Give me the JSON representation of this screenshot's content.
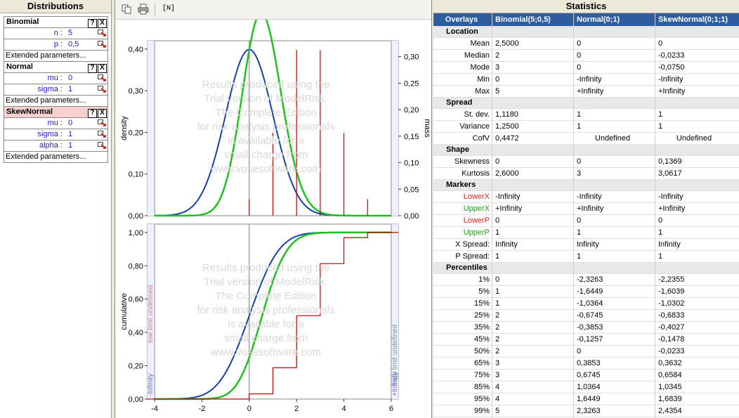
{
  "left": {
    "title": "Distributions",
    "distributions": [
      {
        "name": "Binomial",
        "params": [
          {
            "label": "n :",
            "value": "5"
          },
          {
            "label": "p :",
            "value": "0,5"
          }
        ],
        "extended": "Extended parameters..."
      },
      {
        "name": "Normal",
        "params": [
          {
            "label": "mu :",
            "value": "0"
          },
          {
            "label": "sigma :",
            "value": "1"
          }
        ],
        "extended": "Extended parameters..."
      },
      {
        "name": "SkewNormal",
        "params": [
          {
            "label": "mu :",
            "value": "0"
          },
          {
            "label": "sigma :",
            "value": "1"
          },
          {
            "label": "alpha :",
            "value": "1"
          }
        ],
        "extended": "Extended parameters..."
      }
    ],
    "help_label": "?",
    "close_label": "X"
  },
  "toolbar": {
    "n_label": "[N]"
  },
  "watermark": [
    "Results produced using the",
    "Trial version of ModelRisk.",
    "The Complete Edition",
    "for risk analysis professionals",
    "is available for a",
    "small charge from",
    "www.vosesoftware.com"
  ],
  "chart_data": [
    {
      "type": "line",
      "title": "",
      "ylabel": "density",
      "y2label": "mass",
      "xlim": [
        -4.3,
        6.3
      ],
      "ylim": [
        0,
        0.42
      ],
      "y2lim": [
        0,
        0.33
      ],
      "yticks": [
        "0,40",
        "0,30",
        "0,20",
        "0,10",
        "0,00"
      ],
      "y2ticks": [
        "0,30",
        "0,25",
        "0,20",
        "0,15",
        "0,10",
        "0,05",
        "0,00"
      ],
      "series": [
        {
          "name": "Normal(0;1)",
          "color": "#1a3faa"
        },
        {
          "name": "SkewNormal(0;1;1)",
          "color": "#20c020"
        },
        {
          "name": "Binomial(5;0,5)",
          "color": "#c00000",
          "x": [
            0,
            1,
            2,
            3,
            4,
            5
          ],
          "values": [
            0.03125,
            0.15625,
            0.3125,
            0.3125,
            0.15625,
            0.03125
          ]
        }
      ]
    },
    {
      "type": "line",
      "ylabel": "cumulative",
      "xlim": [
        -4.3,
        6.3
      ],
      "ylim": [
        0,
        1.05
      ],
      "yticks": [
        "1,00",
        "0,80",
        "0,60",
        "0,40",
        "0,20",
        "0,00"
      ],
      "xticks": [
        "-4",
        "-2",
        "0",
        "2",
        "4",
        "6"
      ],
      "low_limit": "low limit undefined",
      "high_limit": "high limit undefined",
      "low_inf": "-Infinity",
      "high_inf": "+Infinity",
      "series": [
        {
          "name": "Normal(0;1)",
          "color": "#1a3faa"
        },
        {
          "name": "SkewNormal(0;1;1)",
          "color": "#20c020"
        },
        {
          "name": "Binomial(5;0,5)",
          "color": "#c00000",
          "x": [
            0,
            1,
            2,
            3,
            4,
            5
          ],
          "values": [
            0.03125,
            0.1875,
            0.5,
            0.8125,
            0.96875,
            1
          ]
        }
      ]
    }
  ],
  "stats": {
    "title": "Statistics",
    "header": [
      "Overlays",
      "Binomial(5;0,5)",
      "Normal(0;1)",
      "SkewNormal(0;1;1)"
    ],
    "sections": [
      {
        "name": "Location",
        "rows": [
          [
            "Mean",
            "2,5000",
            "0",
            "0"
          ],
          [
            "Median",
            "2",
            "0",
            "-0,0233"
          ],
          [
            "Mode",
            "3",
            "0",
            "-0,0750"
          ],
          [
            "Min",
            "0",
            "-Infinity",
            "-Infinity"
          ],
          [
            "Max",
            "5",
            "+Infinity",
            "+Infinity"
          ]
        ]
      },
      {
        "name": "Spread",
        "rows": [
          [
            "St. dev.",
            "1,1180",
            "1",
            "1"
          ],
          [
            "Variance",
            "1,2500",
            "1",
            "1"
          ],
          [
            "CofV",
            "0,4472",
            "Undefined",
            "Undefined"
          ]
        ]
      },
      {
        "name": "Shape",
        "rows": [
          [
            "Skewness",
            "0",
            "0",
            "0,1369"
          ],
          [
            "Kurtosis",
            "2,6000",
            "3",
            "3,0617"
          ]
        ]
      },
      {
        "name": "Markers",
        "rows": [
          [
            "LowerX",
            "-Infinity",
            "-Infinity",
            "-Infinity"
          ],
          [
            "UpperX",
            "+Infinity",
            "+Infinity",
            "+Infinity"
          ],
          [
            "LowerP",
            "0",
            "0",
            "0"
          ],
          [
            "UpperP",
            "1",
            "1",
            "1"
          ],
          [
            "X Spread:",
            "Infinity",
            "Infinity",
            "Infinity"
          ],
          [
            "P Spread:",
            "1",
            "1",
            "1"
          ]
        ]
      },
      {
        "name": "Percentiles",
        "rows": [
          [
            "1%",
            "0",
            "-2,3263",
            "-2,2355"
          ],
          [
            "5%",
            "1",
            "-1,6449",
            "-1,6039"
          ],
          [
            "15%",
            "1",
            "-1,0364",
            "-1,0302"
          ],
          [
            "25%",
            "2",
            "-0,6745",
            "-0,6833"
          ],
          [
            "35%",
            "2",
            "-0,3853",
            "-0,4027"
          ],
          [
            "45%",
            "2",
            "-0,1257",
            "-0,1478"
          ],
          [
            "50%",
            "2",
            "0",
            "-0,0233"
          ],
          [
            "65%",
            "3",
            "0,3853",
            "0,3632"
          ],
          [
            "75%",
            "3",
            "0,6745",
            "0,6584"
          ],
          [
            "85%",
            "4",
            "1,0364",
            "1,0345"
          ],
          [
            "95%",
            "4",
            "1,6449",
            "1,6839"
          ],
          [
            "99%",
            "5",
            "2,3263",
            "2,4354"
          ]
        ]
      }
    ]
  }
}
